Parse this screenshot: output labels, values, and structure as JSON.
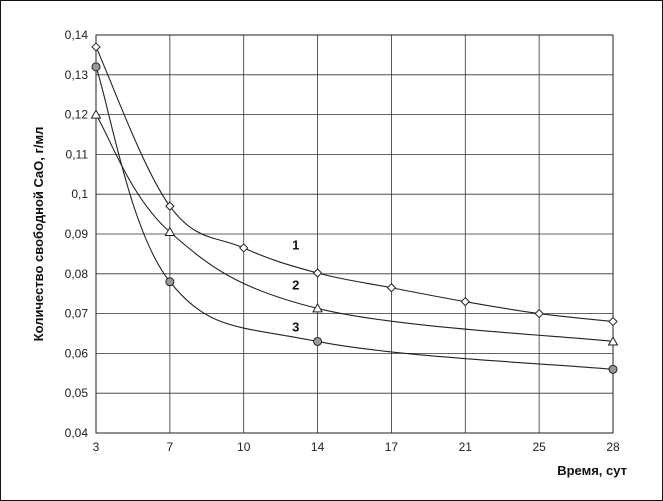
{
  "chart_data": {
    "type": "line",
    "title": "",
    "xlabel": "Время, сут",
    "ylabel": "Количество свободной CaO, г/мл",
    "x_scale": "categorical",
    "categories": [
      "3",
      "7",
      "10",
      "14",
      "17",
      "21",
      "25",
      "28"
    ],
    "y_ticks": [
      "0,04",
      "0,05",
      "0,06",
      "0,07",
      "0,08",
      "0,09",
      "0,1",
      "0,11",
      "0,12",
      "0,13",
      "0,14"
    ],
    "ylim": [
      0.04,
      0.14
    ],
    "grid": true,
    "legend": "none",
    "series": [
      {
        "name": "1",
        "marker": "diamond",
        "values": [
          0.137,
          0.097,
          0.0865,
          0.0802,
          0.0765,
          0.073,
          0.07,
          0.068
        ]
      },
      {
        "name": "2",
        "marker": "triangle",
        "values": [
          0.12,
          0.0905,
          null,
          0.0713,
          null,
          null,
          null,
          0.063
        ]
      },
      {
        "name": "3",
        "marker": "circle",
        "values": [
          0.132,
          0.078,
          null,
          0.063,
          null,
          null,
          null,
          0.056
        ]
      }
    ]
  }
}
